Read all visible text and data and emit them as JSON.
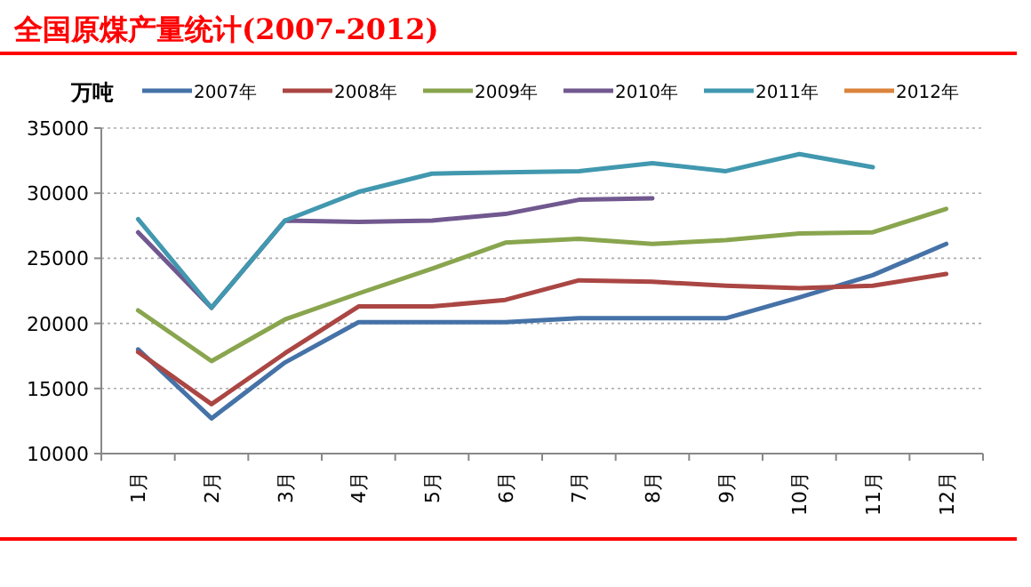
{
  "chart_data": {
    "type": "line",
    "title": "全国原煤产量统计(2007-2012)",
    "ylabel": "万吨",
    "categories": [
      "1月",
      "2月",
      "3月",
      "4月",
      "5月",
      "6月",
      "7月",
      "8月",
      "9月",
      "10月",
      "11月",
      "12月"
    ],
    "series": [
      {
        "name": "2007年",
        "color": "#4572a7",
        "values": [
          18000,
          12700,
          17000,
          20100,
          20100,
          20100,
          20400,
          20400,
          20400,
          22000,
          23700,
          26100
        ]
      },
      {
        "name": "2008年",
        "color": "#aa4643",
        "values": [
          17800,
          13800,
          17700,
          21300,
          21300,
          21800,
          23300,
          23200,
          22900,
          22700,
          22900,
          23800
        ]
      },
      {
        "name": "2009年",
        "color": "#89a54e",
        "values": [
          21000,
          17100,
          20300,
          22300,
          24200,
          26200,
          26500,
          26100,
          26400,
          26900,
          27000,
          28800
        ]
      },
      {
        "name": "2010年",
        "color": "#71588f",
        "values": [
          27000,
          21200,
          27900,
          27800,
          27900,
          28400,
          29500,
          29600,
          null,
          null,
          null,
          null
        ]
      },
      {
        "name": "2011年",
        "color": "#4198af",
        "values": [
          28000,
          21200,
          27900,
          30100,
          31500,
          31600,
          31700,
          32300,
          31700,
          33000,
          32000,
          null
        ]
      },
      {
        "name": "2012年",
        "color": "#db843d",
        "values": [
          null,
          null,
          null,
          null,
          null,
          null,
          null,
          null,
          null,
          null,
          null,
          null
        ]
      }
    ],
    "ylim": [
      10000,
      35000
    ],
    "yticks": [
      10000,
      15000,
      20000,
      25000,
      30000,
      35000
    ],
    "grid": "y",
    "legend": "top",
    "marker": "none",
    "line_style": "solid"
  }
}
